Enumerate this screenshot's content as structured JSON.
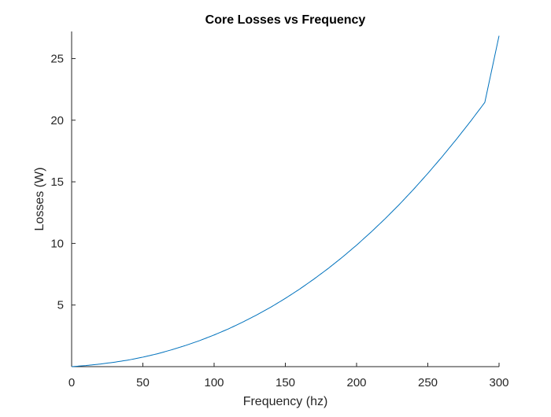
{
  "chart_data": {
    "type": "line",
    "title": "Core Losses vs Frequency",
    "xlabel": "Frequency (hz)",
    "ylabel": "Losses (W)",
    "xlim": [
      0,
      300
    ],
    "ylim": [
      0,
      27.2
    ],
    "xticks": [
      0,
      50,
      100,
      150,
      200,
      250,
      300
    ],
    "yticks": [
      5,
      10,
      15,
      20,
      25
    ],
    "grid": false,
    "legend": "none",
    "line_color": "#0072BD",
    "series": [
      {
        "x": [
          0,
          10,
          20,
          30,
          40,
          50,
          60,
          70,
          80,
          90,
          100,
          110,
          120,
          130,
          140,
          150,
          160,
          170,
          180,
          190,
          200,
          210,
          220,
          230,
          240,
          250,
          260,
          270,
          280,
          290,
          300
        ],
        "values": [
          0,
          0.09,
          0.21,
          0.36,
          0.54,
          0.77,
          1.04,
          1.36,
          1.72,
          2.12,
          2.57,
          3.06,
          3.61,
          4.2,
          4.84,
          5.54,
          6.29,
          7.1,
          7.96,
          8.88,
          9.86,
          10.9,
          12.0,
          13.16,
          14.39,
          15.68,
          17.03,
          18.44,
          19.91,
          21.44,
          26.85
        ]
      }
    ]
  }
}
